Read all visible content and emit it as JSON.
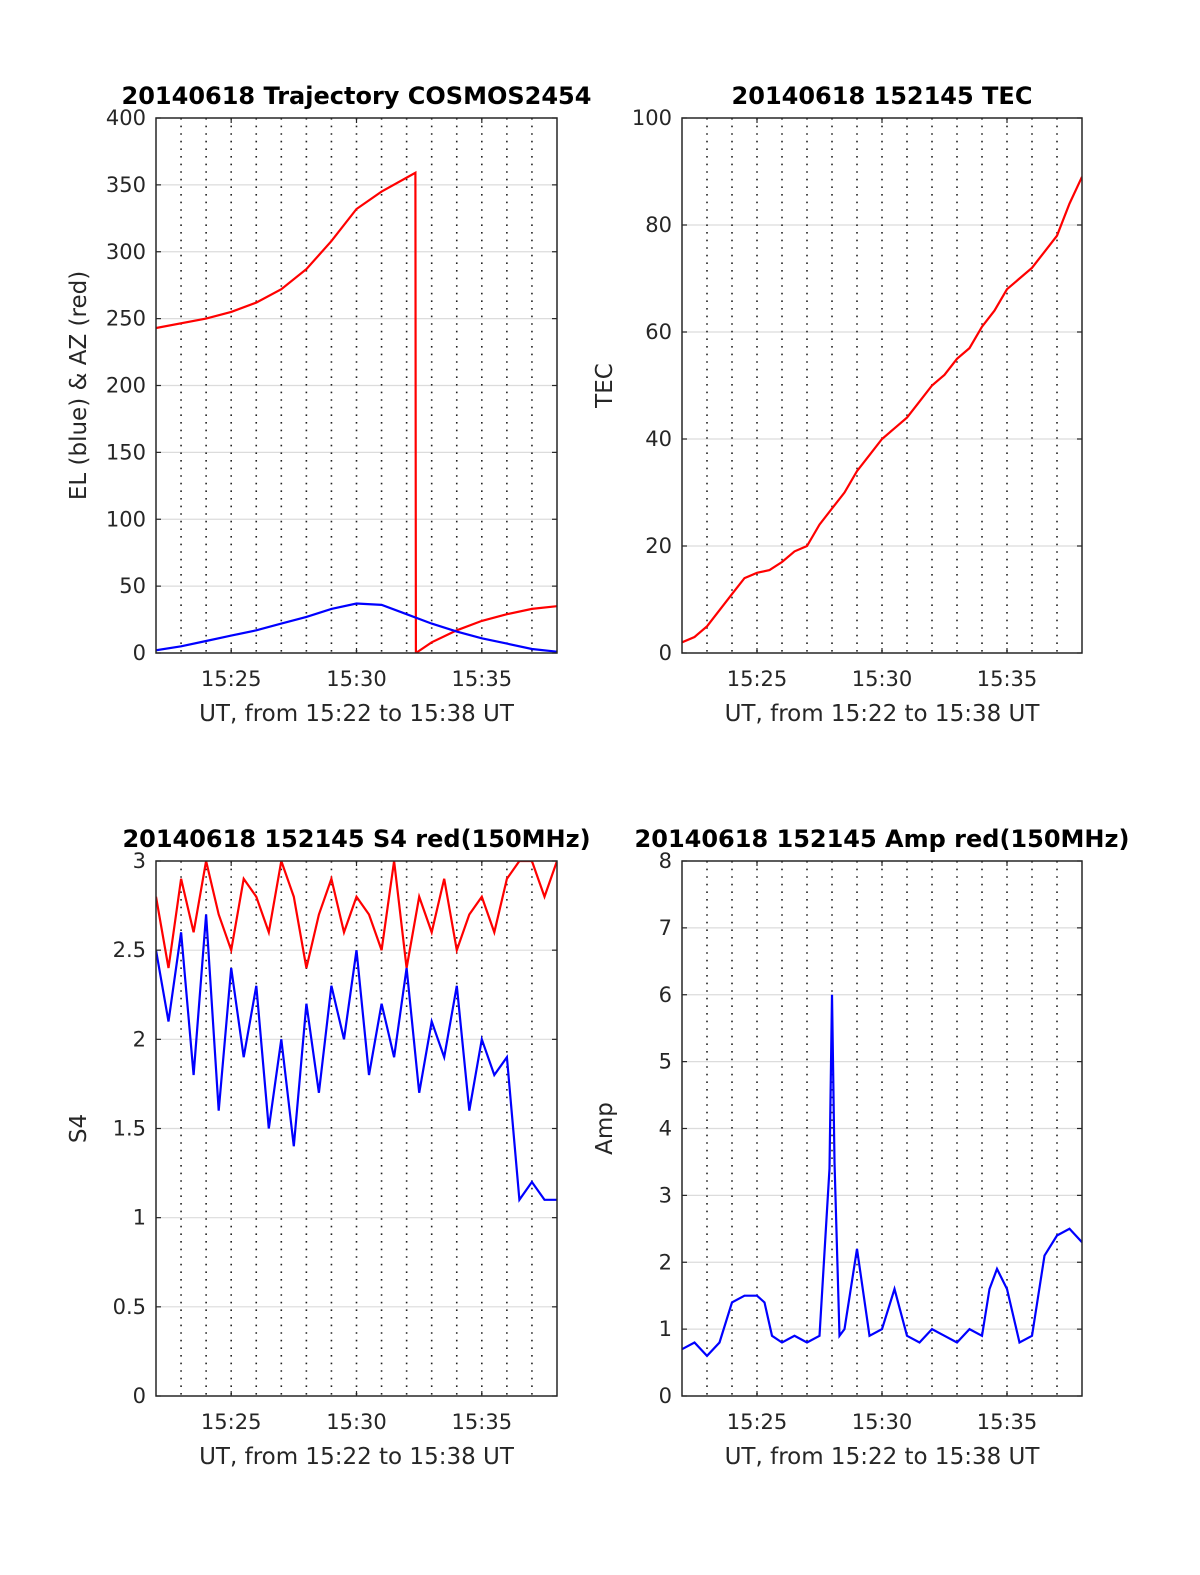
{
  "chart_data": [
    {
      "type": "line",
      "title": "20140618 Trajectory COSMOS2454",
      "xlabel": "UT, from 15:22 to 15:38 UT",
      "ylabel": "EL (blue) & AZ (red)",
      "xlim": [
        0,
        16
      ],
      "ylim": [
        0,
        400
      ],
      "x_ticks": [
        {
          "pos": 3,
          "label": "15:25"
        },
        {
          "pos": 8,
          "label": "15:30"
        },
        {
          "pos": 13,
          "label": "15:35"
        }
      ],
      "y_ticks": [
        0,
        50,
        100,
        150,
        200,
        250,
        300,
        350,
        400
      ],
      "vertical_dotted_grid": [
        1,
        2,
        3,
        4,
        5,
        6,
        7,
        8,
        9,
        10,
        11,
        12,
        13,
        14,
        15
      ],
      "grid": true,
      "series": [
        {
          "color": "#ff0000",
          "x": [
            0,
            2,
            3,
            4,
            5,
            6,
            7,
            8,
            9,
            10.35,
            10.37,
            11,
            12,
            13,
            14,
            15,
            16
          ],
          "y": [
            243,
            250,
            255,
            262,
            272,
            287,
            308,
            332,
            345,
            359,
            0,
            8,
            17,
            24,
            29,
            33,
            35
          ]
        },
        {
          "color": "#0000ff",
          "x": [
            0,
            1,
            2,
            3,
            4,
            5,
            6,
            7,
            8,
            9,
            10,
            11,
            12,
            13,
            14,
            15,
            16
          ],
          "y": [
            2,
            5,
            9,
            13,
            17,
            22,
            27,
            33,
            37,
            36,
            29,
            22,
            16,
            11,
            7,
            3,
            1
          ]
        }
      ]
    },
    {
      "type": "line",
      "title": "20140618 152145 TEC",
      "xlabel": "UT, from 15:22 to 15:38 UT",
      "ylabel": "TEC",
      "xlim": [
        0,
        16
      ],
      "ylim": [
        0,
        100
      ],
      "x_ticks": [
        {
          "pos": 3,
          "label": "15:25"
        },
        {
          "pos": 8,
          "label": "15:30"
        },
        {
          "pos": 13,
          "label": "15:35"
        }
      ],
      "y_ticks": [
        0,
        20,
        40,
        60,
        80,
        100
      ],
      "vertical_dotted_grid": [
        1,
        2,
        3,
        4,
        5,
        6,
        7,
        8,
        9,
        10,
        11,
        12,
        13,
        14,
        15
      ],
      "grid": true,
      "series": [
        {
          "color": "#ff0000",
          "x": [
            0,
            0.5,
            1,
            1.5,
            2,
            2.5,
            3,
            3.5,
            4,
            4.5,
            5,
            5.5,
            6,
            6.5,
            7,
            7.5,
            8,
            8.5,
            9,
            9.5,
            10,
            10.5,
            11,
            11.5,
            12,
            12.5,
            13,
            13.5,
            14,
            14.5,
            15,
            15.5,
            16
          ],
          "y": [
            2,
            3,
            5,
            8,
            11,
            14,
            15,
            15.5,
            17,
            19,
            20,
            24,
            27,
            30,
            34,
            37,
            40,
            42,
            44,
            47,
            50,
            52,
            55,
            57,
            61,
            64,
            68,
            70,
            72,
            75,
            78,
            84,
            89
          ]
        }
      ]
    },
    {
      "type": "line",
      "title": "20140618 152145 S4 red(150MHz)",
      "xlabel": "UT, from 15:22 to 15:38 UT",
      "ylabel": "S4",
      "xlim": [
        0,
        16
      ],
      "ylim": [
        0,
        3
      ],
      "x_ticks": [
        {
          "pos": 3,
          "label": "15:25"
        },
        {
          "pos": 8,
          "label": "15:30"
        },
        {
          "pos": 13,
          "label": "15:35"
        }
      ],
      "y_ticks": [
        0,
        0.5,
        1,
        1.5,
        2,
        2.5,
        3
      ],
      "vertical_dotted_grid": [
        1,
        2,
        3,
        4,
        5,
        6,
        7,
        8,
        9,
        10,
        11,
        12,
        13,
        14,
        15
      ],
      "grid": true,
      "series": [
        {
          "color": "#ff0000",
          "x": [
            0,
            0.5,
            1,
            1.5,
            2,
            2.5,
            3,
            3.5,
            4,
            4.5,
            5,
            5.5,
            6,
            6.5,
            7,
            7.5,
            8,
            8.5,
            9,
            9.5,
            10,
            10.5,
            11,
            11.5,
            12,
            12.5,
            13,
            13.5,
            14,
            14.5,
            15,
            15.5,
            16
          ],
          "y": [
            2.8,
            2.4,
            2.9,
            2.6,
            3.0,
            2.7,
            2.5,
            2.9,
            2.8,
            2.6,
            3.0,
            2.8,
            2.4,
            2.7,
            2.9,
            2.6,
            2.8,
            2.7,
            2.5,
            3.0,
            2.4,
            2.8,
            2.6,
            2.9,
            2.5,
            2.7,
            2.8,
            2.6,
            2.9,
            3.0,
            3.0,
            2.8,
            3.0
          ]
        },
        {
          "color": "#0000ff",
          "x": [
            0,
            0.5,
            1,
            1.5,
            2,
            2.5,
            3,
            3.5,
            4,
            4.5,
            5,
            5.5,
            6,
            6.5,
            7,
            7.5,
            8,
            8.5,
            9,
            9.5,
            10,
            10.5,
            11,
            11.5,
            12,
            12.5,
            13,
            13.5,
            14,
            14.5,
            15,
            15.5,
            16
          ],
          "y": [
            2.5,
            2.1,
            2.6,
            1.8,
            2.7,
            1.6,
            2.4,
            1.9,
            2.3,
            1.5,
            2.0,
            1.4,
            2.2,
            1.7,
            2.3,
            2.0,
            2.5,
            1.8,
            2.2,
            1.9,
            2.4,
            1.7,
            2.1,
            1.9,
            2.3,
            1.6,
            2.0,
            1.8,
            1.9,
            1.1,
            1.2,
            1.1,
            1.1
          ]
        }
      ]
    },
    {
      "type": "line",
      "title": "20140618 152145 Amp red(150MHz)",
      "xlabel": "UT, from 15:22 to 15:38 UT",
      "ylabel": "Amp",
      "xlim": [
        0,
        16
      ],
      "ylim": [
        0,
        8
      ],
      "x_ticks": [
        {
          "pos": 3,
          "label": "15:25"
        },
        {
          "pos": 8,
          "label": "15:30"
        },
        {
          "pos": 13,
          "label": "15:35"
        }
      ],
      "y_ticks": [
        0,
        1,
        2,
        3,
        4,
        5,
        6,
        7,
        8
      ],
      "vertical_dotted_grid": [
        1,
        2,
        3,
        4,
        5,
        6,
        7,
        8,
        9,
        10,
        11,
        12,
        13,
        14,
        15
      ],
      "grid": true,
      "series": [
        {
          "color": "#0000ff",
          "x": [
            0,
            0.5,
            1,
            1.5,
            2,
            2.5,
            3,
            3.3,
            3.6,
            4,
            4.5,
            5,
            5.5,
            5.9,
            6.0,
            6.1,
            6.3,
            6.5,
            7,
            7.5,
            8,
            8.5,
            9,
            9.5,
            10,
            10.5,
            11,
            11.5,
            12,
            12.3,
            12.6,
            13,
            13.5,
            14,
            14.5,
            15,
            15.5,
            16
          ],
          "y": [
            0.7,
            0.8,
            0.6,
            0.8,
            1.4,
            1.5,
            1.5,
            1.4,
            0.9,
            0.8,
            0.9,
            0.8,
            0.9,
            3.4,
            6.0,
            3.5,
            0.9,
            1.0,
            2.2,
            0.9,
            1.0,
            1.6,
            0.9,
            0.8,
            1.0,
            0.9,
            0.8,
            1.0,
            0.9,
            1.6,
            1.9,
            1.6,
            0.8,
            0.9,
            2.1,
            2.4,
            2.5,
            2.3
          ]
        }
      ]
    }
  ]
}
